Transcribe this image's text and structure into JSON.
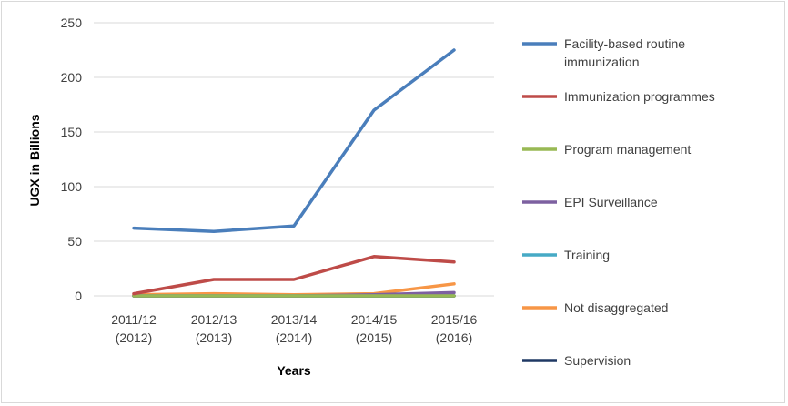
{
  "chart_data": {
    "type": "line",
    "title": "",
    "xlabel": "Years",
    "ylabel": "UGX  in Billions",
    "categories": [
      [
        "2011/12",
        "(2012)"
      ],
      [
        "2012/13",
        "(2013)"
      ],
      [
        "2013/14",
        "(2014)"
      ],
      [
        "2014/15",
        "(2015)"
      ],
      [
        "2015/16",
        "(2016)"
      ]
    ],
    "ylim": [
      0,
      250
    ],
    "yticks": [
      0,
      50,
      100,
      150,
      200,
      250
    ],
    "grid": true,
    "legend_position": "right",
    "series": [
      {
        "name": [
          "Facility-based routine",
          "immunization"
        ],
        "color": "#4a7ebb",
        "values": [
          62,
          59,
          64,
          170,
          225
        ]
      },
      {
        "name": [
          "Immunization programmes"
        ],
        "color": "#be4b48",
        "values": [
          2,
          15,
          15,
          36,
          31
        ]
      },
      {
        "name": [
          "Program management"
        ],
        "color": "#98b954",
        "values": [
          0,
          0,
          0,
          0,
          0
        ]
      },
      {
        "name": [
          "EPI Surveillance"
        ],
        "color": "#7d60a0",
        "values": [
          0,
          0,
          0,
          1,
          3
        ]
      },
      {
        "name": [
          "Training"
        ],
        "color": "#46aac5",
        "values": [
          0,
          0,
          0,
          0,
          0
        ]
      },
      {
        "name": [
          "Not disaggregated"
        ],
        "color": "#f79646",
        "values": [
          1,
          2,
          1,
          2,
          11
        ]
      },
      {
        "name": [
          "Supervision"
        ],
        "color": "#1f3864",
        "values": [
          0,
          0,
          0,
          0,
          0
        ]
      },
      {
        "name": [],
        "color": "#7f1f1f",
        "values": [
          0,
          0,
          0,
          0,
          0
        ]
      }
    ]
  }
}
